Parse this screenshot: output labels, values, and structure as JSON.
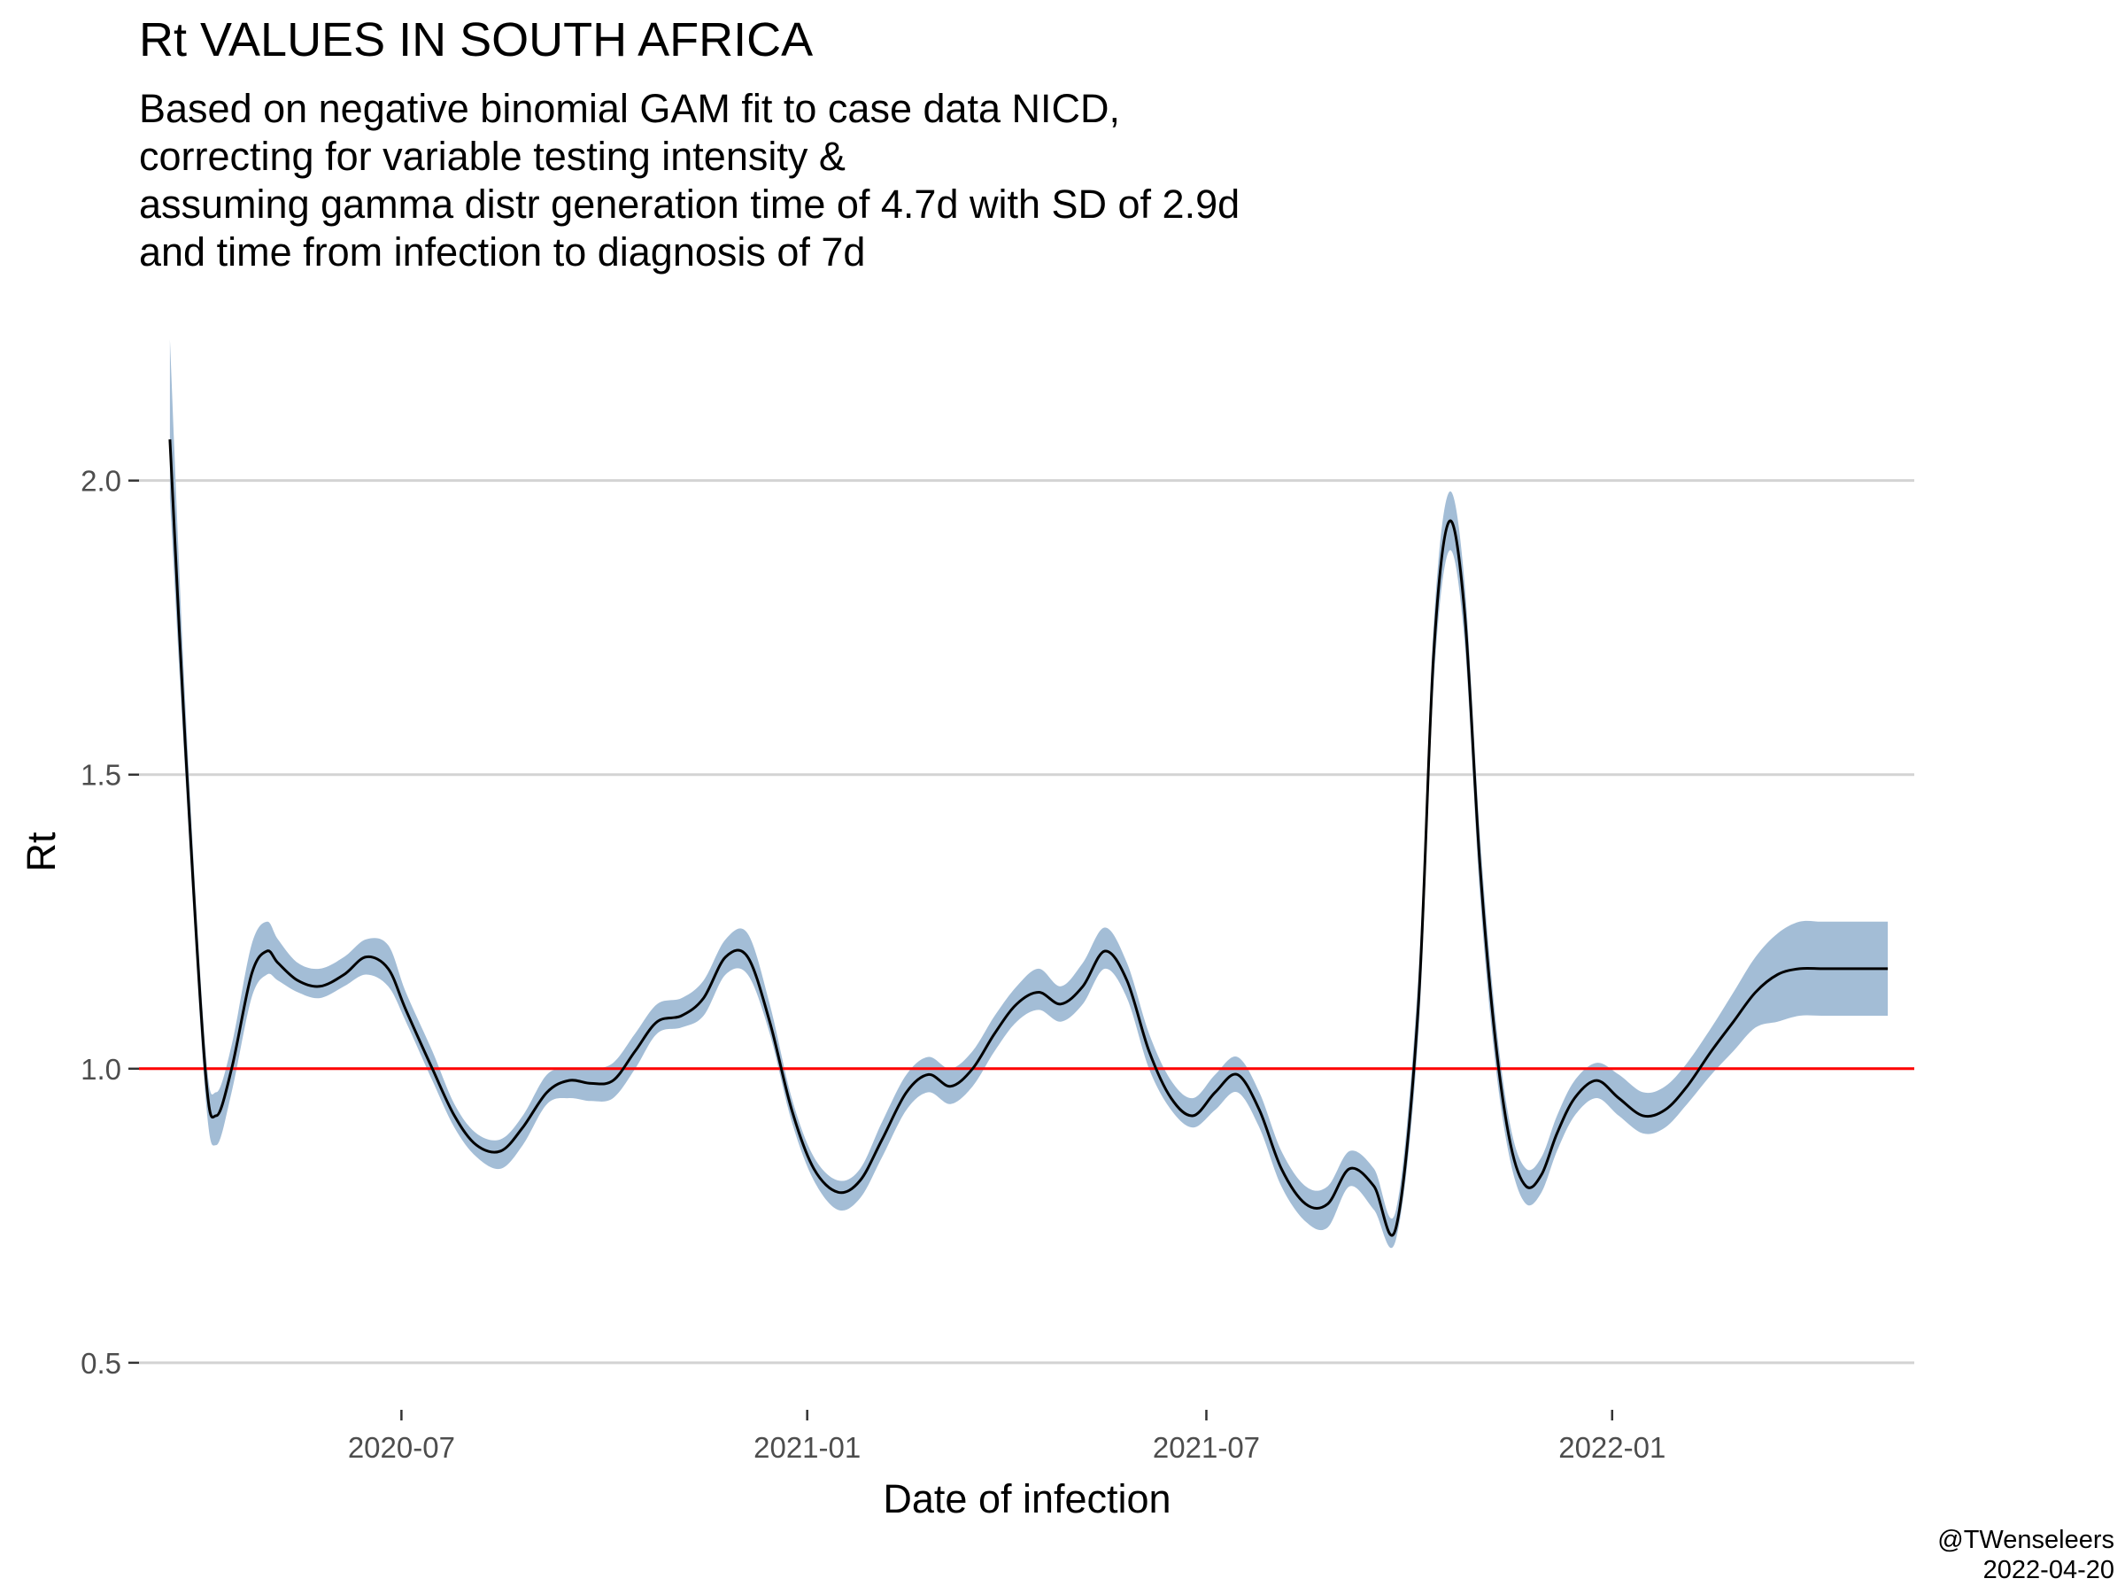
{
  "header": {
    "title": "Rt VALUES IN SOUTH AFRICA",
    "subtitle_lines": [
      "Based on negative binomial GAM fit to case data NICD,",
      "correcting for variable testing intensity &",
      "assuming gamma distr generation time of 4.7d with SD of 2.9d",
      "and time from infection to diagnosis of 7d"
    ]
  },
  "caption": {
    "author": "@TWenseleers",
    "date": "2022-04-20"
  },
  "colors": {
    "ribbon": "#a3bdd6",
    "line": "#000000",
    "reference": "#ff0000",
    "grid": "#d3d3d3"
  },
  "chart_data": {
    "type": "line",
    "xlabel": "Date of infection",
    "ylabel": "Rt",
    "xlim": [
      "2020-03-04",
      "2022-05-18"
    ],
    "ylim": [
      0.42,
      2.26
    ],
    "x_ticks": [
      "2020-07-01",
      "2021-01-01",
      "2021-07-01",
      "2022-01-01"
    ],
    "x_tick_labels": [
      "2020-07",
      "2021-01",
      "2021-07",
      "2022-01"
    ],
    "y_ticks": [
      0.5,
      1.0,
      1.5,
      2.0
    ],
    "y_tick_labels": [
      "0.5",
      "1.0",
      "1.5",
      "2.0"
    ],
    "reference_line": 1.0,
    "grid": "horizontal major",
    "series": [
      {
        "x": [
          "2020-03-18",
          "2020-03-25",
          "2020-04-03",
          "2020-04-08",
          "2020-04-15",
          "2020-04-24",
          "2020-05-01",
          "2020-05-06",
          "2020-05-15",
          "2020-05-25",
          "2020-06-05",
          "2020-06-15",
          "2020-06-25",
          "2020-07-03",
          "2020-07-15",
          "2020-07-25",
          "2020-08-04",
          "2020-08-15",
          "2020-08-25",
          "2020-09-05",
          "2020-09-15",
          "2020-09-25",
          "2020-10-05",
          "2020-10-15",
          "2020-10-25",
          "2020-11-05",
          "2020-11-15",
          "2020-11-25",
          "2020-12-05",
          "2020-12-15",
          "2020-12-25",
          "2021-01-04",
          "2021-01-15",
          "2021-01-25",
          "2021-02-04",
          "2021-02-15",
          "2021-02-25",
          "2021-03-07",
          "2021-03-17",
          "2021-03-27",
          "2021-04-06",
          "2021-04-16",
          "2021-04-26",
          "2021-05-06",
          "2021-05-16",
          "2021-05-26",
          "2021-06-05",
          "2021-06-15",
          "2021-06-25",
          "2021-07-05",
          "2021-07-15",
          "2021-07-25",
          "2021-08-04",
          "2021-08-15",
          "2021-08-25",
          "2021-09-04",
          "2021-09-15",
          "2021-09-25",
          "2021-10-05",
          "2021-10-12",
          "2021-10-19",
          "2021-10-26",
          "2021-11-02",
          "2021-11-09",
          "2021-11-16",
          "2021-11-23",
          "2021-11-30",
          "2021-12-07",
          "2021-12-15",
          "2021-12-25",
          "2022-01-04",
          "2022-01-15",
          "2022-01-25",
          "2022-02-04",
          "2022-02-15",
          "2022-02-25",
          "2022-03-07",
          "2022-03-17",
          "2022-03-27",
          "2022-04-06",
          "2022-04-16",
          "2022-04-26",
          "2022-05-06"
        ],
        "values": [
          2.07,
          1.55,
          1.0,
          0.92,
          1.0,
          1.16,
          1.2,
          1.18,
          1.15,
          1.14,
          1.16,
          1.19,
          1.17,
          1.1,
          1.0,
          0.92,
          0.87,
          0.86,
          0.9,
          0.96,
          0.98,
          0.975,
          0.98,
          1.03,
          1.08,
          1.09,
          1.12,
          1.19,
          1.19,
          1.08,
          0.93,
          0.83,
          0.79,
          0.81,
          0.88,
          0.96,
          0.99,
          0.97,
          1.0,
          1.06,
          1.11,
          1.13,
          1.11,
          1.14,
          1.2,
          1.15,
          1.03,
          0.95,
          0.92,
          0.96,
          0.99,
          0.93,
          0.83,
          0.77,
          0.77,
          0.83,
          0.8,
          0.73,
          1.1,
          1.7,
          1.93,
          1.78,
          1.35,
          1.05,
          0.87,
          0.8,
          0.82,
          0.89,
          0.95,
          0.98,
          0.95,
          0.92,
          0.93,
          0.97,
          1.03,
          1.08,
          1.13,
          1.16,
          1.17,
          1.17,
          1.17,
          1.17,
          1.17
        ],
        "lower": [
          1.97,
          1.5,
          0.96,
          0.87,
          0.96,
          1.12,
          1.16,
          1.15,
          1.13,
          1.12,
          1.14,
          1.16,
          1.14,
          1.08,
          0.98,
          0.9,
          0.85,
          0.83,
          0.87,
          0.94,
          0.95,
          0.945,
          0.95,
          1.0,
          1.06,
          1.07,
          1.09,
          1.16,
          1.16,
          1.06,
          0.91,
          0.81,
          0.76,
          0.78,
          0.85,
          0.93,
          0.96,
          0.94,
          0.97,
          1.03,
          1.08,
          1.1,
          1.08,
          1.11,
          1.17,
          1.12,
          1.0,
          0.93,
          0.9,
          0.93,
          0.96,
          0.9,
          0.8,
          0.74,
          0.73,
          0.8,
          0.76,
          0.71,
          1.05,
          1.65,
          1.88,
          1.73,
          1.3,
          1.01,
          0.84,
          0.77,
          0.79,
          0.86,
          0.92,
          0.95,
          0.92,
          0.89,
          0.9,
          0.94,
          0.99,
          1.03,
          1.07,
          1.08,
          1.09,
          1.09,
          1.09,
          1.09,
          1.09
        ],
        "upper": [
          2.24,
          1.62,
          1.04,
          0.96,
          1.04,
          1.21,
          1.25,
          1.22,
          1.18,
          1.17,
          1.19,
          1.22,
          1.21,
          1.13,
          1.03,
          0.94,
          0.89,
          0.88,
          0.92,
          0.99,
          1.0,
          1.0,
          1.01,
          1.06,
          1.11,
          1.12,
          1.15,
          1.22,
          1.23,
          1.11,
          0.95,
          0.85,
          0.81,
          0.83,
          0.91,
          0.99,
          1.02,
          1.0,
          1.03,
          1.09,
          1.14,
          1.17,
          1.14,
          1.18,
          1.24,
          1.18,
          1.06,
          0.98,
          0.95,
          0.99,
          1.02,
          0.96,
          0.86,
          0.8,
          0.8,
          0.86,
          0.83,
          0.76,
          1.15,
          1.75,
          1.98,
          1.83,
          1.4,
          1.09,
          0.9,
          0.83,
          0.85,
          0.92,
          0.98,
          1.01,
          0.99,
          0.96,
          0.97,
          1.01,
          1.07,
          1.13,
          1.19,
          1.23,
          1.25,
          1.25,
          1.25,
          1.25,
          1.25
        ]
      }
    ]
  }
}
